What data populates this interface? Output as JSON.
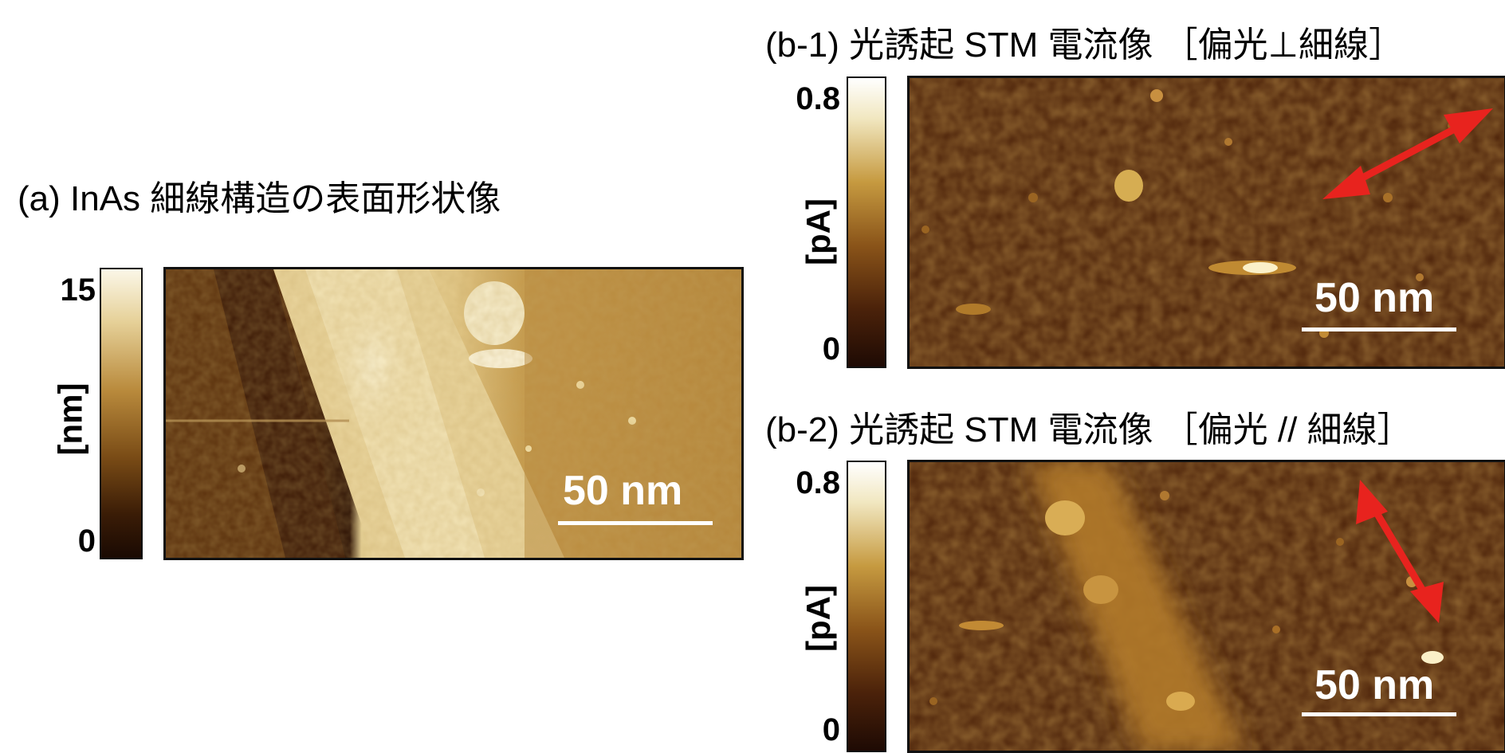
{
  "panel_a": {
    "title": "(a) InAs 細線構造の表面形状像",
    "colorbar": {
      "max_label": "15",
      "min_label": "0",
      "unit": "[nm]"
    },
    "scale_bar": "50 nm"
  },
  "panel_b1": {
    "title": "(b-1) 光誘起 STM 電流像 ［偏光⊥細線］",
    "colorbar": {
      "max_label": "0.8",
      "min_label": "0",
      "unit": "[pA]"
    },
    "scale_bar": "50 nm",
    "arrow_color": "#e8231e"
  },
  "panel_b2": {
    "title": "(b-2) 光誘起 STM 電流像 ［偏光 // 細線］",
    "colorbar": {
      "max_label": "0.8",
      "min_label": "0",
      "unit": "[pA]"
    },
    "scale_bar": "50 nm",
    "arrow_color": "#e8231e"
  }
}
